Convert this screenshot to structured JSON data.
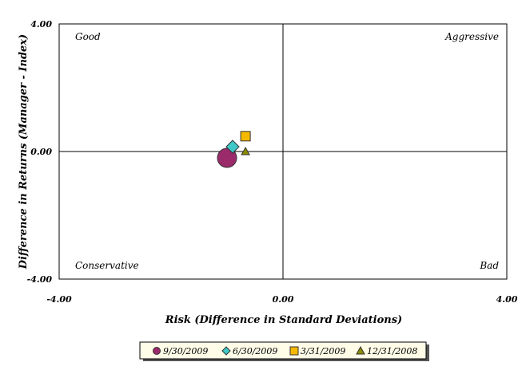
{
  "chart_data": {
    "type": "scatter",
    "xlabel": "Risk (Difference in Standard Deviations)",
    "ylabel": "Difference in Returns (Manager - Index)",
    "xlim": [
      -4,
      4
    ],
    "ylim": [
      -4,
      4
    ],
    "x_ticks": [
      "-4.00",
      "0.00",
      "4.00"
    ],
    "y_ticks": [
      "4.00",
      "0.00",
      "-4.00"
    ],
    "grid": false,
    "legend_position": "bottom",
    "quadrant_labels": {
      "top_left": "Good",
      "top_right": "Aggressive",
      "bottom_left": "Conservative",
      "bottom_right": "Bad"
    },
    "series": [
      {
        "name": "9/30/2009",
        "marker": "circle",
        "color": "#9b2a6b",
        "x": -1.0,
        "y": -0.2
      },
      {
        "name": "6/30/2009",
        "marker": "diamond",
        "color": "#3ec8c8",
        "x": -0.9,
        "y": 0.15
      },
      {
        "name": "3/31/2009",
        "marker": "square",
        "color": "#f5b800",
        "x": -0.67,
        "y": 0.48
      },
      {
        "name": "12/31/2008",
        "marker": "triangle",
        "color": "#8b8b00",
        "x": -0.67,
        "y": 0.0
      }
    ]
  }
}
